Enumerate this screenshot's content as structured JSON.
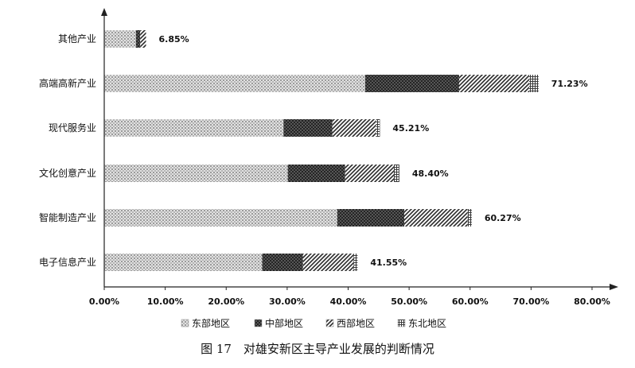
{
  "caption": "图 17　对雄安新区主导产业发展的判断情况",
  "chart_data": {
    "type": "bar",
    "orientation": "horizontal",
    "stacked": true,
    "categories": [
      "其他产业",
      "高端高新产业",
      "现代服务业",
      "文化创意产业",
      "智能制造产业",
      "电子信息产业"
    ],
    "series": [
      {
        "name": "东部地区",
        "pattern": "dots",
        "values": [
          5.2,
          42.8,
          29.4,
          30.1,
          38.2,
          25.9
        ]
      },
      {
        "name": "中部地区",
        "pattern": "crosshatch",
        "values": [
          0.7,
          15.4,
          8.0,
          9.4,
          11.0,
          6.7
        ]
      },
      {
        "name": "西部地区",
        "pattern": "diagonal",
        "values": [
          0.95,
          11.5,
          7.2,
          8.0,
          10.4,
          8.3
        ]
      },
      {
        "name": "东北地区",
        "pattern": "grid",
        "values": [
          0.0,
          1.53,
          0.61,
          0.9,
          0.67,
          0.65
        ]
      }
    ],
    "totals": [
      "6.85%",
      "71.23%",
      "45.21%",
      "48.40%",
      "60.27%",
      "41.55%"
    ],
    "x_ticks": [
      "0.00%",
      "10.00%",
      "20.00%",
      "30.00%",
      "40.00%",
      "50.00%",
      "60.00%",
      "70.00%",
      "80.00%"
    ],
    "xlim": [
      0,
      80
    ],
    "legend_position": "bottom",
    "grid": false
  }
}
